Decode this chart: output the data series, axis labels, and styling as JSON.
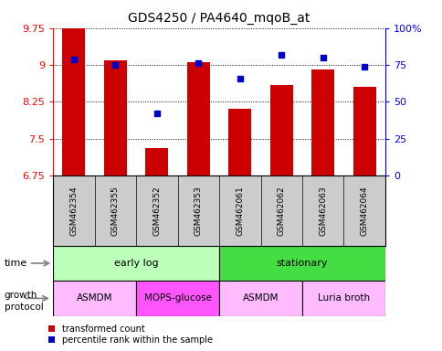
{
  "title": "GDS4250 / PA4640_mqoB_at",
  "samples": [
    "GSM462354",
    "GSM462355",
    "GSM462352",
    "GSM462353",
    "GSM462061",
    "GSM462062",
    "GSM462063",
    "GSM462064"
  ],
  "bar_values": [
    9.75,
    9.1,
    7.3,
    9.05,
    8.1,
    8.6,
    8.9,
    8.55
  ],
  "blue_values": [
    79,
    75,
    42,
    76,
    66,
    82,
    80,
    74
  ],
  "ylim": [
    6.75,
    9.75
  ],
  "yticks": [
    6.75,
    7.5,
    8.25,
    9.0,
    9.75
  ],
  "ytick_labels": [
    "6.75",
    "7.5",
    "8.25",
    "9",
    "9.75"
  ],
  "y2lim": [
    0,
    100
  ],
  "y2ticks": [
    0,
    25,
    50,
    75,
    100
  ],
  "y2ticklabels": [
    "0",
    "25",
    "50",
    "75",
    "100%"
  ],
  "bar_color": "#cc0000",
  "blue_color": "#0000cc",
  "bar_width": 0.55,
  "time_groups": [
    {
      "label": "early log",
      "start": 0,
      "end": 4,
      "color": "#bbffbb"
    },
    {
      "label": "stationary",
      "start": 4,
      "end": 8,
      "color": "#44dd44"
    }
  ],
  "protocol_groups": [
    {
      "label": "ASMDM",
      "start": 0,
      "end": 2,
      "color": "#ffbbff"
    },
    {
      "label": "MOPS-glucose",
      "start": 2,
      "end": 4,
      "color": "#ff55ff"
    },
    {
      "label": "ASMDM",
      "start": 4,
      "end": 6,
      "color": "#ffbbff"
    },
    {
      "label": "Luria broth",
      "start": 6,
      "end": 8,
      "color": "#ffbbff"
    }
  ],
  "legend_red_label": "transformed count",
  "legend_blue_label": "percentile rank within the sample",
  "sample_bg": "#cccccc",
  "background_color": "#ffffff"
}
